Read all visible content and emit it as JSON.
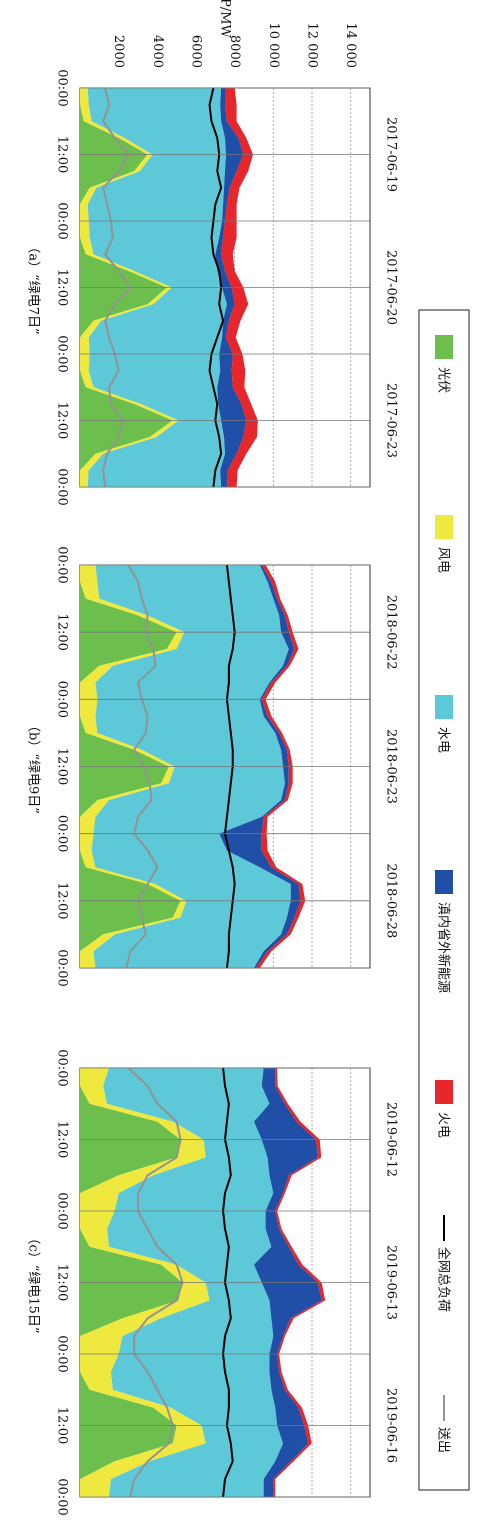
{
  "chart_data": {
    "type": "area",
    "y_label": "P/MW",
    "ylim": [
      0,
      15000
    ],
    "yticks": [
      2000,
      4000,
      6000,
      8000,
      {
        "value": 10000,
        "label": "10 000"
      },
      {
        "value": 12000,
        "label": "12 000"
      },
      {
        "value": 14000,
        "label": "14 000"
      }
    ],
    "grid": true,
    "legend": [
      {
        "name": "光伏",
        "color": "#6cbf4c",
        "kind": "area"
      },
      {
        "name": "风电",
        "color": "#efe93f",
        "kind": "area"
      },
      {
        "name": "水电",
        "color": "#5cc8d8",
        "kind": "area"
      },
      {
        "name": "滇内省外新能源",
        "color": "#1f4fa6",
        "kind": "area"
      },
      {
        "name": "火电",
        "color": "#e6262b",
        "kind": "area"
      },
      {
        "name": "全网总负荷",
        "color": "#000000",
        "kind": "line"
      },
      {
        "name": "送出",
        "color": "#939393",
        "kind": "line"
      }
    ],
    "panels": [
      {
        "title": "（a）“绿电7日”",
        "day_labels": [
          "2017-06-19",
          "2017-06-20",
          "2017-06-23"
        ],
        "xlim": [
          0,
          72
        ],
        "xticks": [
          {
            "value": 0,
            "label": "00:00"
          },
          {
            "value": 12,
            "label": "12:00"
          },
          {
            "value": 24,
            "label": "00:00"
          },
          {
            "value": 36,
            "label": "12:00"
          },
          {
            "value": 48,
            "label": "00:00"
          },
          {
            "value": 60,
            "label": "12:00"
          },
          {
            "value": 72,
            "label": "00:00"
          }
        ],
        "x": [
          0,
          3,
          6,
          9,
          12,
          15,
          18,
          21,
          24,
          27,
          30,
          33,
          36,
          39,
          42,
          45,
          48,
          51,
          54,
          57,
          60,
          63,
          66,
          69,
          72
        ],
        "series": [
          {
            "values": [
              0,
              0,
              200,
              2000,
              3500,
              2800,
              500,
              0,
              0,
              0,
              300,
              2500,
              4500,
              3500,
              700,
              0,
              0,
              0,
              300,
              2800,
              4800,
              3600,
              800,
              0,
              0
            ]
          },
          {
            "values": [
              400,
              450,
              400,
              300,
              250,
              300,
              350,
              400,
              450,
              500,
              400,
              300,
              250,
              300,
              400,
              450,
              500,
              450,
              400,
              350,
              300,
              350,
              400,
              450,
              400
            ]
          },
          {
            "values": [
              6900,
              6800,
              6700,
              5200,
              3800,
              4400,
              6600,
              7000,
              6900,
              6700,
              6300,
              4300,
              2600,
              3800,
              6300,
              6900,
              6700,
              6800,
              6400,
              4000,
              2200,
              3500,
              6300,
              6800,
              6900
            ]
          },
          {
            "values": [
              200,
              250,
              300,
              700,
              900,
              600,
              300,
              200,
              150,
              200,
              300,
              400,
              500,
              400,
              300,
              200,
              700,
              600,
              800,
              1200,
              1300,
              1000,
              600,
              400,
              300
            ]
          },
          {
            "values": [
              500,
              600,
              500,
              400,
              500,
              600,
              500,
              500,
              600,
              700,
              600,
              500,
              600,
              700,
              600,
              500,
              500,
              700,
              600,
              500,
              600,
              700,
              500,
              500,
              500
            ]
          },
          {
            "values": [
              6900,
              6700,
              6800,
              7100,
              7200,
              7100,
              7300,
              7000,
              6900,
              6800,
              6900,
              7200,
              7300,
              7200,
              7400,
              7100,
              6800,
              6700,
              6900,
              7100,
              7000,
              7200,
              7300,
              7000,
              6900
            ]
          },
          {
            "values": [
              1300,
              1500,
              1200,
              1800,
              2500,
              2000,
              1200,
              1400,
              1600,
              1700,
              1300,
              2000,
              2600,
              1800,
              1300,
              1500,
              1800,
              2000,
              1500,
              1600,
              2200,
              2000,
              1400,
              1200,
              1300
            ]
          }
        ]
      },
      {
        "title": "（b）“绿电9日”",
        "day_labels": [
          "2018-06-22",
          "2018-06-23",
          "2018-06-28"
        ],
        "xlim": [
          0,
          72
        ],
        "xticks": [
          {
            "value": 0,
            "label": "00:00"
          },
          {
            "value": 12,
            "label": "12:00"
          },
          {
            "value": 24,
            "label": "00:00"
          },
          {
            "value": 36,
            "label": "12:00"
          },
          {
            "value": 48,
            "label": "00:00"
          },
          {
            "value": 60,
            "label": "12:00"
          },
          {
            "value": 72,
            "label": "00:00"
          }
        ],
        "x": [
          0,
          3,
          6,
          9,
          12,
          15,
          18,
          21,
          24,
          27,
          30,
          33,
          36,
          39,
          42,
          45,
          48,
          51,
          54,
          57,
          60,
          63,
          66,
          69,
          72
        ],
        "series": [
          {
            "values": [
              0,
              0,
              300,
              3000,
              5000,
              4500,
              1000,
              0,
              0,
              0,
              300,
              2800,
              4600,
              4200,
              900,
              0,
              0,
              0,
              300,
              3500,
              5200,
              4800,
              1200,
              0,
              0
            ]
          },
          {
            "values": [
              800,
              900,
              700,
              500,
              400,
              500,
              700,
              800,
              900,
              800,
              600,
              400,
              300,
              400,
              600,
              800,
              700,
              600,
              500,
              400,
              300,
              400,
              600,
              700,
              800
            ]
          },
          {
            "values": [
              8500,
              8800,
              9000,
              6800,
              5000,
              5800,
              8800,
              9000,
              8400,
              8700,
              9200,
              7200,
              5600,
              6000,
              8900,
              8600,
              6500,
              7000,
              8500,
              7000,
              5400,
              5500,
              8600,
              8800,
              8200
            ]
          },
          {
            "values": [
              100,
              200,
              200,
              300,
              400,
              300,
              200,
              100,
              100,
              200,
              200,
              300,
              300,
              200,
              200,
              100,
              2200,
              1800,
              600,
              400,
              500,
              400,
              300,
              200,
              100
            ]
          },
          {
            "values": [
              200,
              200,
              150,
              150,
              200,
              200,
              150,
              200,
              200,
              200,
              150,
              150,
              200,
              200,
              150,
              200,
              250,
              300,
              250,
              200,
              250,
              200,
              200,
              200,
              200
            ]
          },
          {
            "values": [
              7600,
              7700,
              7800,
              7900,
              8000,
              7900,
              7700,
              7700,
              7600,
              7700,
              7800,
              7900,
              7900,
              7800,
              7700,
              7600,
              7500,
              7700,
              7900,
              8000,
              7900,
              7800,
              7700,
              7700,
              7600
            ]
          },
          {
            "values": [
              2500,
              3000,
              3200,
              3500,
              3400,
              3800,
              3900,
              3000,
              3200,
              3500,
              3400,
              2800,
              3300,
              3600,
              3700,
              3000,
              2800,
              3500,
              4000,
              3500,
              3000,
              3200,
              3400,
              2600,
              2400
            ]
          }
        ]
      },
      {
        "title": "（c）“绿电15日”",
        "day_labels": [
          "2019-06-12",
          "2019-06-13",
          "2019-06-16"
        ],
        "xlim": [
          0,
          72
        ],
        "xticks": [
          {
            "value": 0,
            "label": "00:00"
          },
          {
            "value": 12,
            "label": "12:00"
          },
          {
            "value": 24,
            "label": "00:00"
          },
          {
            "value": 36,
            "label": "12:00"
          },
          {
            "value": 48,
            "label": "00:00"
          },
          {
            "value": 60,
            "label": "12:00"
          },
          {
            "value": 72,
            "label": "00:00"
          }
        ],
        "x": [
          0,
          3,
          6,
          9,
          12,
          15,
          18,
          21,
          24,
          27,
          30,
          33,
          36,
          39,
          42,
          45,
          48,
          51,
          54,
          57,
          60,
          63,
          66,
          69,
          72
        ],
        "series": [
          {
            "values": [
              0,
              0,
              500,
              4000,
              5200,
              5000,
              2000,
              0,
              0,
              0,
              500,
              4200,
              5300,
              5100,
              2200,
              0,
              0,
              0,
              500,
              3800,
              5000,
              4800,
              1800,
              0,
              0
            ]
          },
          {
            "values": [
              1500,
              1200,
              900,
              800,
              1200,
              1500,
              1800,
              2000,
              1800,
              1400,
              1000,
              800,
              1200,
              1600,
              2000,
              2200,
              2000,
              1600,
              1200,
              900,
              1300,
              1700,
              1800,
              1600,
              1500
            ]
          },
          {
            "values": [
              8000,
              8200,
              8400,
              4200,
              3000,
              3200,
              6000,
              8000,
              7800,
              8200,
              8400,
              4000,
              2900,
              3100,
              5700,
              7800,
              7800,
              8200,
              8200,
              5400,
              3900,
              4000,
              6500,
              7900,
              8000
            ]
          },
          {
            "values": [
              600,
              700,
              800,
              2200,
              2800,
              2600,
              1000,
              500,
              500,
              700,
              900,
              2300,
              2900,
              2700,
              1000,
              500,
              400,
              500,
              700,
              1200,
              1400,
              1300,
              800,
              500,
              500
            ]
          },
          {
            "values": [
              100,
              120,
              150,
              200,
              200,
              180,
              150,
              100,
              100,
              120,
              150,
              200,
              200,
              180,
              150,
              100,
              100,
              120,
              150,
              180,
              200,
              180,
              150,
              100,
              100
            ]
          },
          {
            "values": [
              7400,
              7500,
              7700,
              7600,
              7500,
              7700,
              7800,
              7500,
              7400,
              7500,
              7700,
              7600,
              7500,
              7700,
              7800,
              7500,
              7400,
              7500,
              7700,
              7700,
              7600,
              7800,
              7900,
              7500,
              7400
            ]
          },
          {
            "values": [
              2500,
              3500,
              4000,
              5000,
              5200,
              5000,
              3500,
              3000,
              3000,
              3500,
              4000,
              5000,
              5300,
              5000,
              3500,
              2800,
              2800,
              3500,
              4000,
              4500,
              4800,
              4600,
              3500,
              2800,
              2600
            ]
          }
        ]
      }
    ]
  }
}
